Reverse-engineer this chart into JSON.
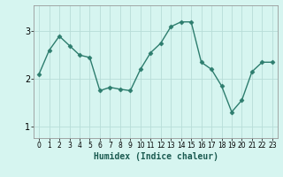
{
  "x": [
    0,
    1,
    2,
    3,
    4,
    5,
    6,
    7,
    8,
    9,
    10,
    11,
    12,
    13,
    14,
    15,
    16,
    17,
    18,
    19,
    20,
    21,
    22,
    23
  ],
  "y": [
    2.1,
    2.6,
    2.9,
    2.7,
    2.5,
    2.45,
    1.75,
    1.82,
    1.78,
    1.75,
    2.2,
    2.55,
    2.75,
    3.1,
    3.2,
    3.2,
    2.35,
    2.2,
    1.85,
    1.3,
    1.55,
    2.15,
    2.35,
    2.35
  ],
  "line_color": "#2d7d6e",
  "marker": "D",
  "marker_size": 2.5,
  "bg_color": "#d6f5f0",
  "grid_color": "#b8ddd8",
  "xlabel": "Humidex (Indice chaleur)",
  "ylim": [
    0.75,
    3.55
  ],
  "xlim": [
    -0.5,
    23.5
  ],
  "yticks": [
    1,
    2,
    3
  ],
  "xticks": [
    0,
    1,
    2,
    3,
    4,
    5,
    6,
    7,
    8,
    9,
    10,
    11,
    12,
    13,
    14,
    15,
    16,
    17,
    18,
    19,
    20,
    21,
    22,
    23
  ]
}
